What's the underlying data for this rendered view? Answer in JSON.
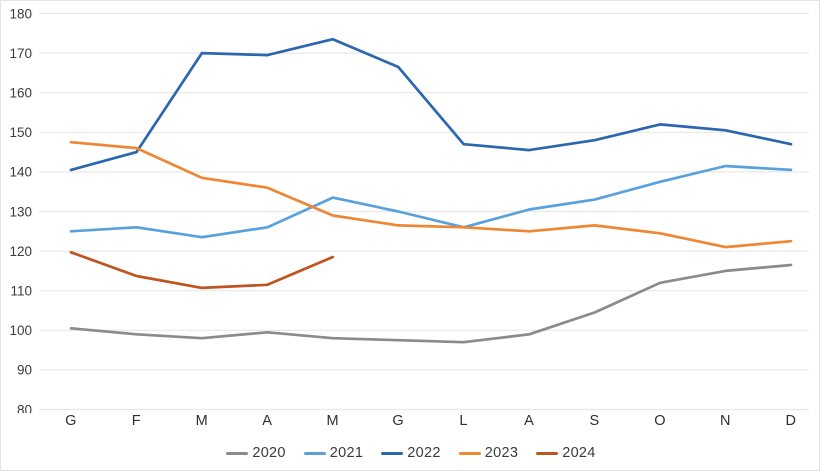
{
  "chart_data": {
    "type": "line",
    "title": "",
    "xlabel": "",
    "ylabel": "",
    "categories": [
      "G",
      "F",
      "M",
      "A",
      "M",
      "G",
      "L",
      "A",
      "S",
      "O",
      "N",
      "D"
    ],
    "series": [
      {
        "name": "2020",
        "color": "#8B8B8B",
        "values": [
          100.5,
          99,
          98,
          99.5,
          98,
          97.5,
          97,
          99,
          104.5,
          112,
          115,
          116.5
        ]
      },
      {
        "name": "2021",
        "color": "#58A1DD",
        "values": [
          125,
          126,
          123.5,
          126,
          133.5,
          130,
          126,
          130.5,
          133,
          137.5,
          141.5,
          140.5
        ]
      },
      {
        "name": "2022",
        "color": "#2A67AE",
        "values": [
          140.5,
          145,
          170,
          169.5,
          173.5,
          166.5,
          147,
          145.5,
          148,
          152,
          150.5,
          147
        ]
      },
      {
        "name": "2023",
        "color": "#ED8733",
        "values": [
          147.5,
          146,
          138.5,
          136,
          129,
          126.5,
          126,
          125,
          126.5,
          124.5,
          121,
          122.5
        ]
      },
      {
        "name": "2024",
        "color": "#C0541F",
        "values": [
          119.7,
          113.7,
          110.7,
          111.5,
          118.5
        ]
      }
    ],
    "ylim": [
      80,
      180
    ],
    "ytick_step": 10,
    "y_tick_labels": [
      "180",
      "170",
      "160",
      "150",
      "140",
      "130",
      "120",
      "110",
      "100",
      "90",
      "80"
    ],
    "grid": "horizontal",
    "grid_color": "#e8e8e8",
    "tick_label_color": "#3c3c3c",
    "legend_position": "bottom",
    "legend_entries": [
      "2020",
      "2021",
      "2022",
      "2023",
      "2024"
    ]
  }
}
